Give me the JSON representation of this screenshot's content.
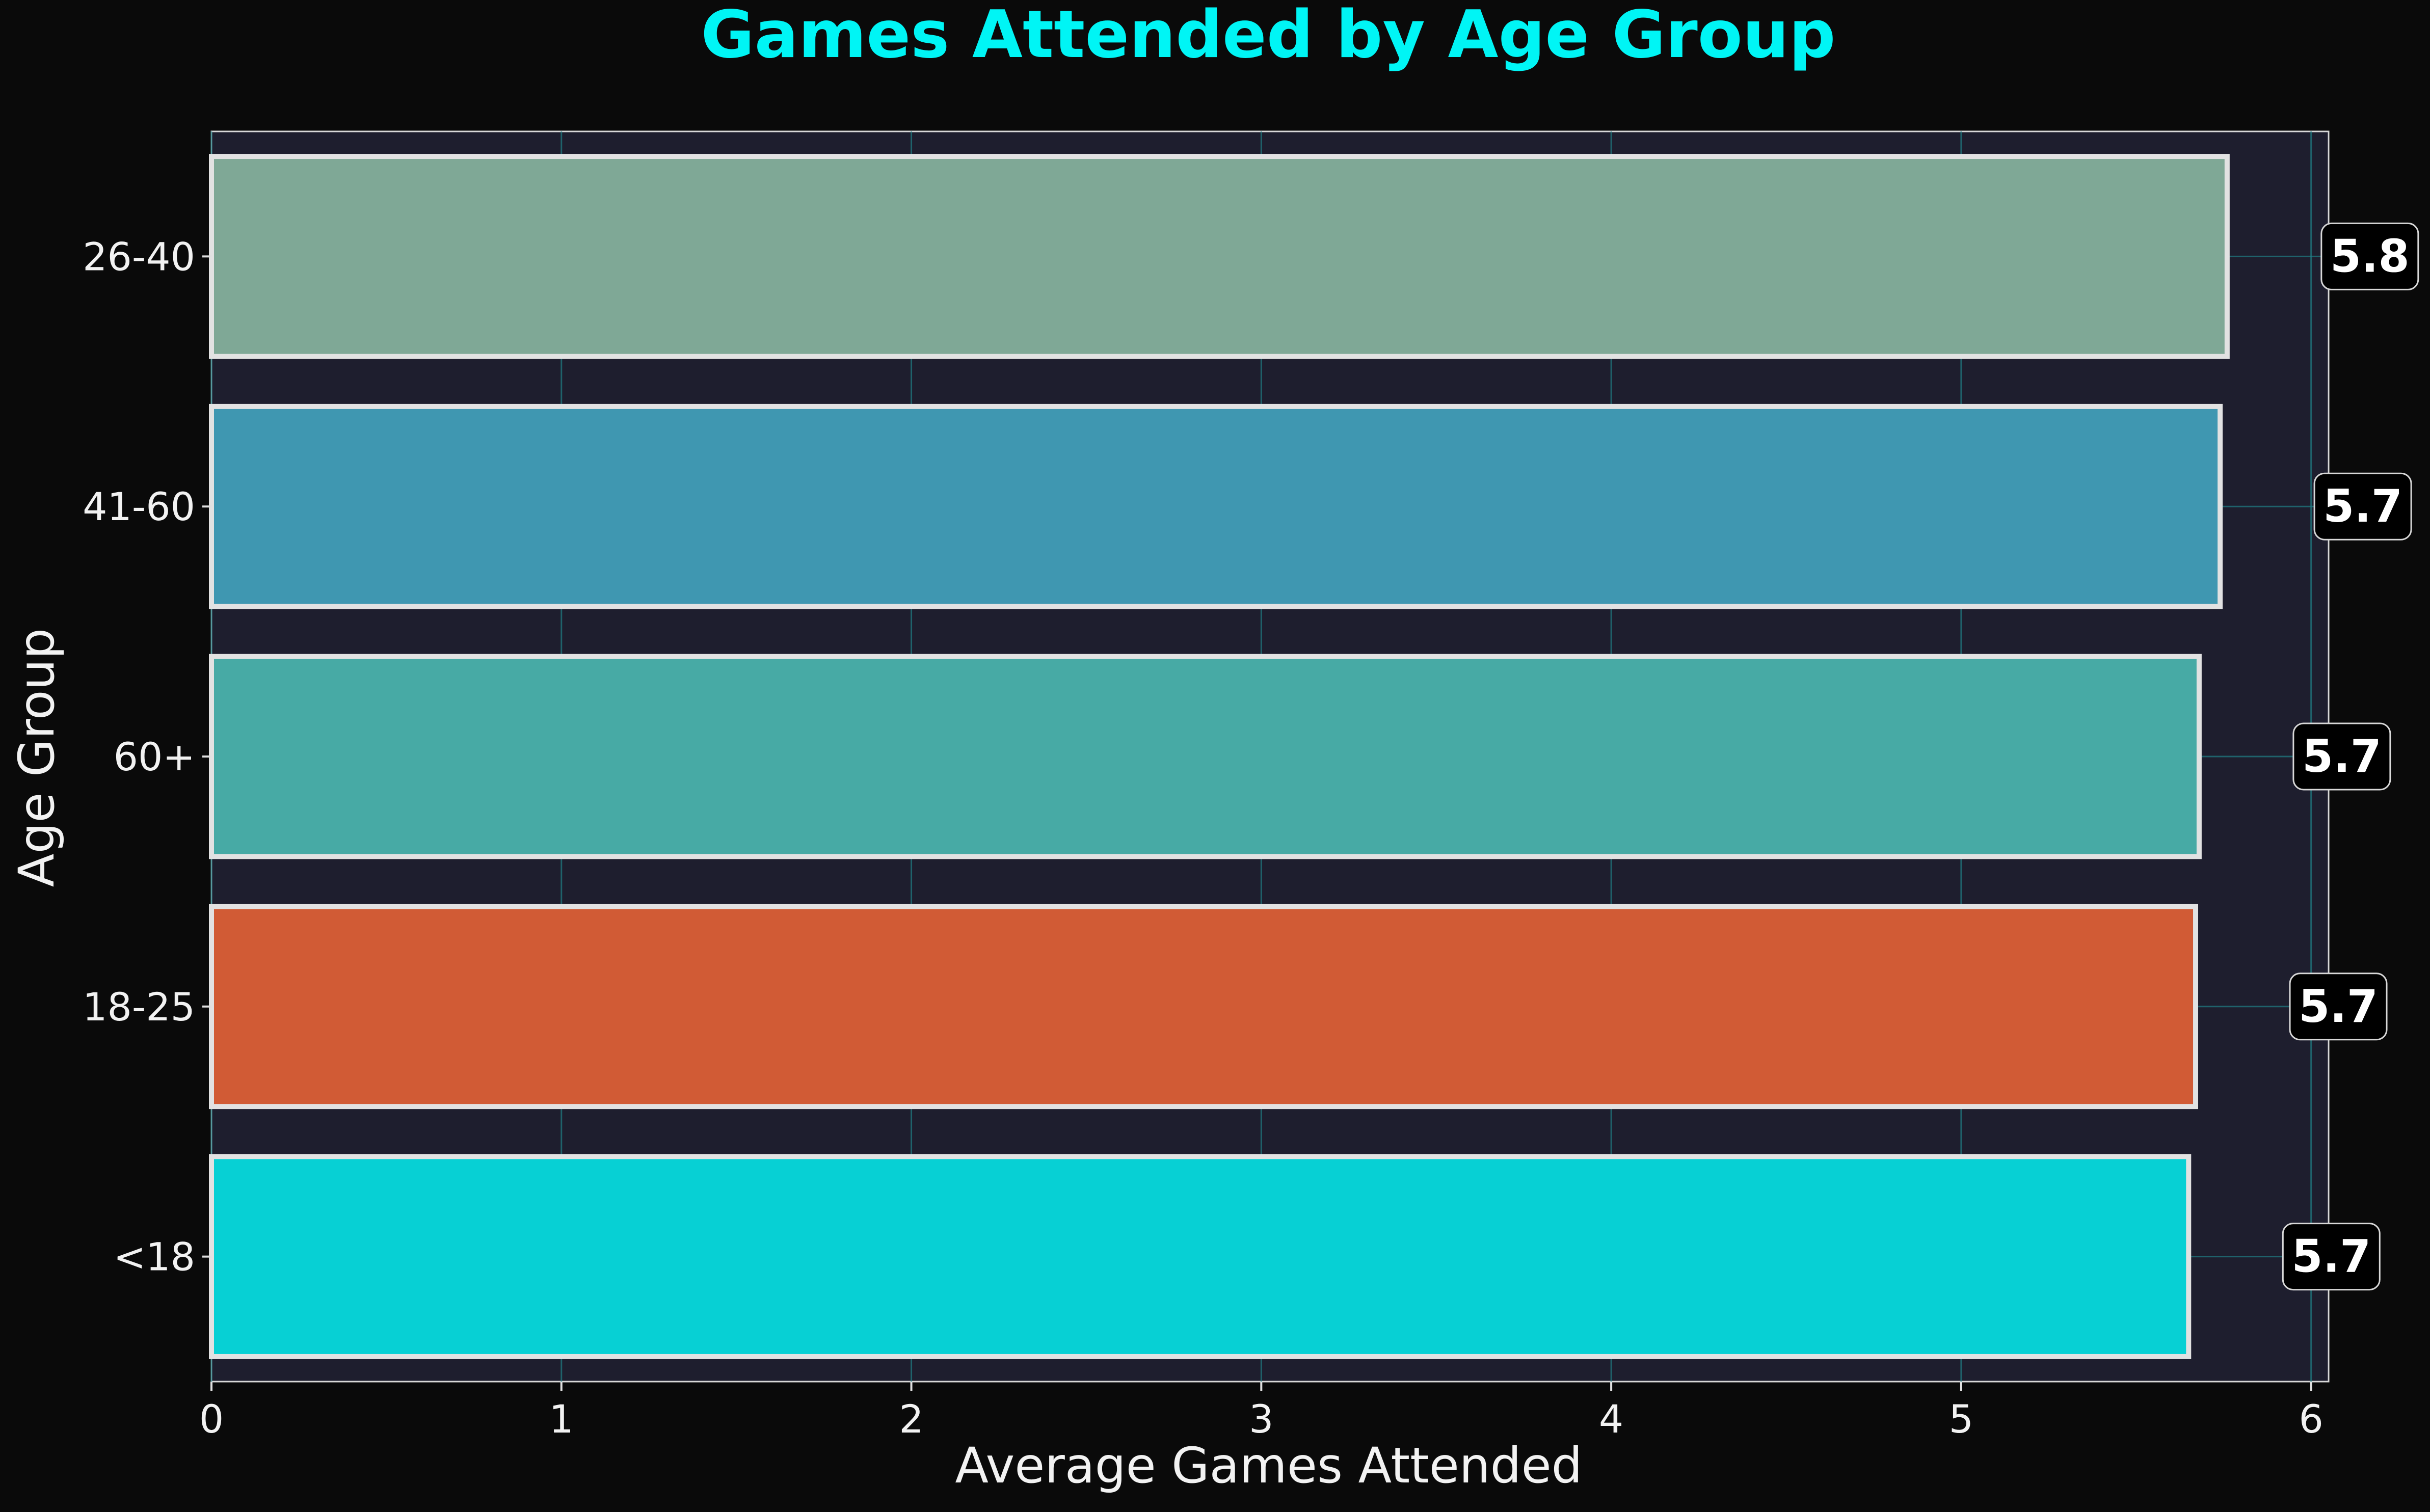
{
  "chart_data": {
    "type": "bar",
    "orientation": "horizontal",
    "title": "Games Attended by Age Group",
    "xlabel": "Average Games Attended",
    "ylabel": "Age Group",
    "categories": [
      "26-40",
      "41-60",
      "60+",
      "18-25",
      "<18"
    ],
    "values": [
      5.76,
      5.74,
      5.68,
      5.67,
      5.65
    ],
    "data_labels": [
      "5.8",
      "5.7",
      "5.7",
      "5.7",
      "5.7"
    ],
    "colors": [
      "#7fa896",
      "#3f97b1",
      "#47aaa5",
      "#d15b35",
      "#07d0d4"
    ],
    "xlim": [
      0,
      6.05
    ],
    "xticks": [
      0,
      1,
      2,
      3,
      4,
      5,
      6
    ],
    "xtick_labels": [
      "0",
      "1",
      "2",
      "3",
      "4",
      "5",
      "6"
    ],
    "grid": true,
    "legend": "none"
  },
  "style": {
    "background": "#0a0a0a",
    "plot_background": "#1e1e2e",
    "title_color": "#00f5f5",
    "text_color": "#f2f2f2",
    "grid_color": "#1f7f86",
    "bar_edge_color": "#e2e2e2",
    "label_box_color": "#000000"
  }
}
